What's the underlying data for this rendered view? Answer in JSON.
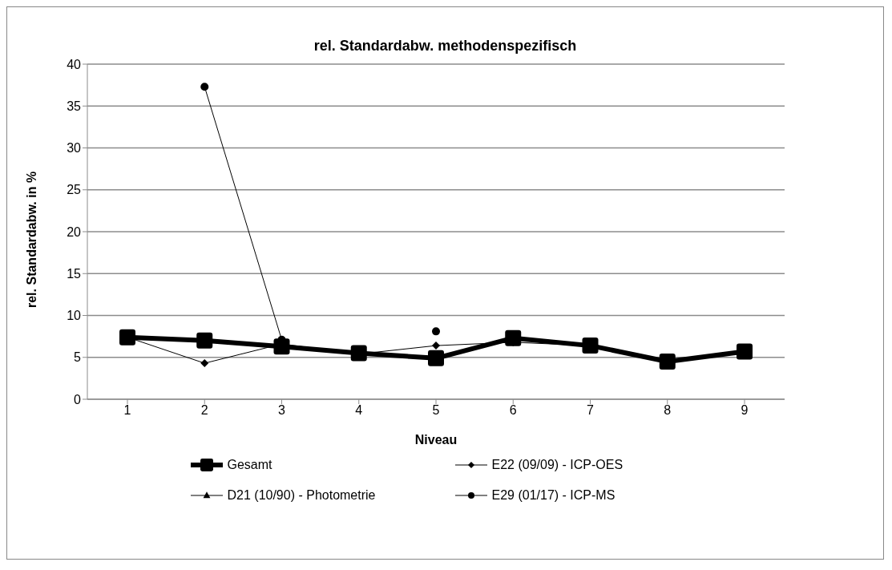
{
  "chart_data": {
    "type": "line",
    "title": "rel. Standardabw. methodenspezifisch",
    "xlabel": "Niveau",
    "ylabel": "rel. Standardabw. in %",
    "categories": [
      "1",
      "2",
      "3",
      "4",
      "5",
      "6",
      "7",
      "8",
      "9"
    ],
    "series": [
      {
        "name": "Gesamt",
        "color": "#000000",
        "marker": "square",
        "values": [
          7.4,
          7.0,
          6.3,
          5.5,
          4.9,
          7.3,
          6.4,
          4.5,
          5.7
        ]
      },
      {
        "name": "E22 (09/09) - ICP-OES",
        "color": "#000000",
        "marker": "diamond",
        "values": [
          7.4,
          4.3,
          6.6,
          5.4,
          6.4,
          6.8,
          6.4,
          4.5,
          5.5
        ]
      },
      {
        "name": "D21 (10/90) - Photometrie",
        "color": "#000000",
        "marker": "triangle",
        "values": [
          null,
          null,
          null,
          null,
          null,
          null,
          null,
          null,
          null
        ]
      },
      {
        "name": "E29 (01/17) - ICP-MS",
        "color": "#000000",
        "marker": "circle",
        "values": [
          null,
          37.3,
          7.1,
          null,
          8.1,
          null,
          null,
          null,
          null
        ]
      }
    ],
    "ylim": [
      0,
      40
    ],
    "yticks": [
      0,
      5,
      10,
      15,
      20,
      25,
      30,
      35,
      40
    ],
    "grid": "y",
    "legend": "bottom",
    "line_style": "solid"
  }
}
